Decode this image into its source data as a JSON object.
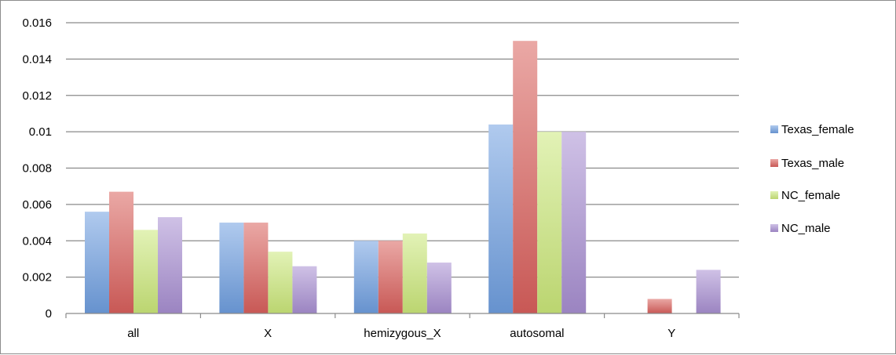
{
  "chart_data": {
    "type": "bar",
    "title": "",
    "xlabel": "",
    "ylabel": "",
    "categories": [
      "all",
      "X",
      "hemizygous_X",
      "autosomal",
      "Y"
    ],
    "ylim": [
      0,
      0.016
    ],
    "yticks": [
      0,
      0.002,
      0.004,
      0.006,
      0.008,
      0.01,
      0.012,
      0.014,
      0.016
    ],
    "ytick_labels": [
      "0",
      "0.002",
      "0.004",
      "0.006",
      "0.008",
      "0.01",
      "0.012",
      "0.014",
      "0.016"
    ],
    "grid": true,
    "legend_position": "right",
    "series": [
      {
        "name": "Texas_female",
        "values": [
          0.0056,
          0.005,
          0.004,
          0.0104,
          0
        ],
        "color": "#6f9fe0"
      },
      {
        "name": "Texas_male",
        "values": [
          0.0067,
          0.005,
          0.004,
          0.015,
          0.0008
        ],
        "color": "#d9605c"
      },
      {
        "name": "NC_female",
        "values": [
          0.0046,
          0.0034,
          0.0044,
          0.01,
          0
        ],
        "color": "#cbe87a"
      },
      {
        "name": "NC_male",
        "values": [
          0.0053,
          0.0026,
          0.0028,
          0.01,
          0.0024
        ],
        "color": "#a88fd2"
      }
    ]
  }
}
